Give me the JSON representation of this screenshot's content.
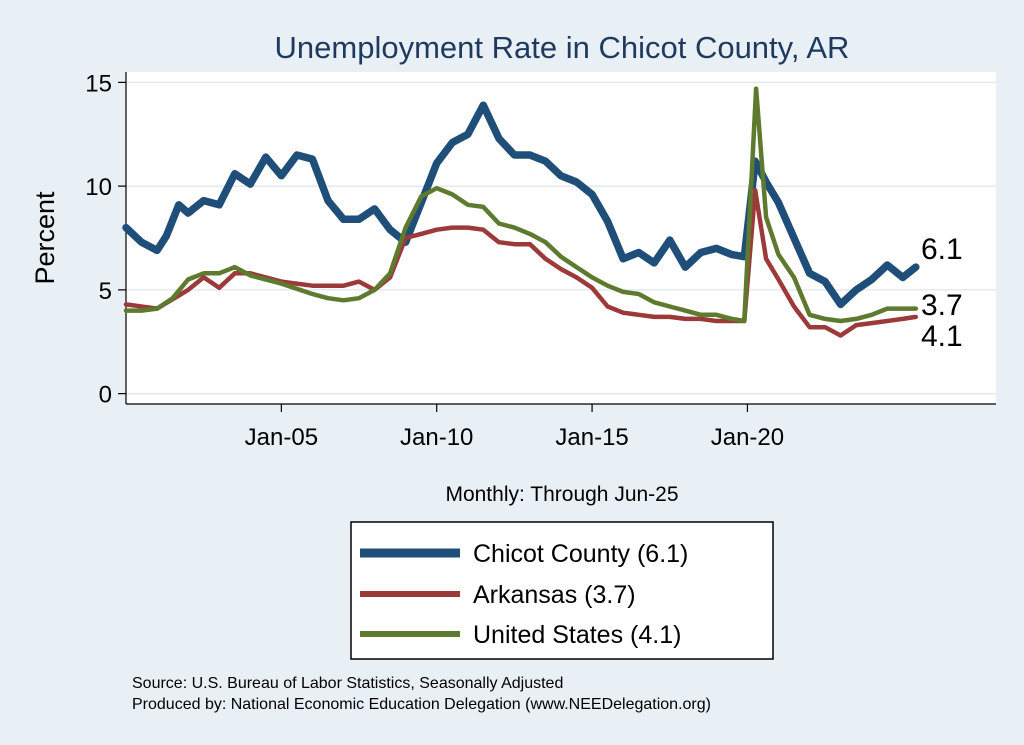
{
  "chart_data": {
    "type": "line",
    "title": "Unemployment Rate in Chicot  County, AR",
    "ylabel": "Percent",
    "xlabel": "Monthly: Through Jun-25",
    "ylim": [
      -0.5,
      15.5
    ],
    "xlim": [
      2000.0,
      2028.0
    ],
    "yticks": [
      0,
      5,
      10,
      15
    ],
    "xticks": [
      {
        "label": "Jan-05",
        "year": 2005.0
      },
      {
        "label": "Jan-10",
        "year": 2010.0
      },
      {
        "label": "Jan-15",
        "year": 2015.0
      },
      {
        "label": "Jan-20",
        "year": 2020.0
      }
    ],
    "series": [
      {
        "name": "Chicot  County",
        "legend": "Chicot  County (6.1)",
        "end_label": "6.1",
        "last_value": 6.1,
        "color": "#1f4e79",
        "points": [
          [
            2000.0,
            8.0
          ],
          [
            2000.5,
            7.3
          ],
          [
            2001.0,
            6.9
          ],
          [
            2001.3,
            7.6
          ],
          [
            2001.7,
            9.1
          ],
          [
            2002.0,
            8.7
          ],
          [
            2002.5,
            9.3
          ],
          [
            2003.0,
            9.1
          ],
          [
            2003.5,
            10.6
          ],
          [
            2004.0,
            10.1
          ],
          [
            2004.5,
            11.4
          ],
          [
            2005.0,
            10.5
          ],
          [
            2005.5,
            11.5
          ],
          [
            2006.0,
            11.3
          ],
          [
            2006.5,
            9.3
          ],
          [
            2007.0,
            8.4
          ],
          [
            2007.5,
            8.4
          ],
          [
            2008.0,
            8.9
          ],
          [
            2008.5,
            7.9
          ],
          [
            2009.0,
            7.3
          ],
          [
            2009.5,
            9.2
          ],
          [
            2010.0,
            11.1
          ],
          [
            2010.5,
            12.1
          ],
          [
            2011.0,
            12.5
          ],
          [
            2011.5,
            13.9
          ],
          [
            2012.0,
            12.3
          ],
          [
            2012.5,
            11.5
          ],
          [
            2013.0,
            11.5
          ],
          [
            2013.5,
            11.2
          ],
          [
            2014.0,
            10.5
          ],
          [
            2014.5,
            10.2
          ],
          [
            2015.0,
            9.6
          ],
          [
            2015.5,
            8.3
          ],
          [
            2016.0,
            6.5
          ],
          [
            2016.5,
            6.8
          ],
          [
            2017.0,
            6.3
          ],
          [
            2017.5,
            7.4
          ],
          [
            2018.0,
            6.1
          ],
          [
            2018.5,
            6.8
          ],
          [
            2019.0,
            7.0
          ],
          [
            2019.5,
            6.7
          ],
          [
            2019.9,
            6.6
          ],
          [
            2020.25,
            11.2
          ],
          [
            2020.6,
            10.2
          ],
          [
            2021.0,
            9.2
          ],
          [
            2021.5,
            7.5
          ],
          [
            2022.0,
            5.8
          ],
          [
            2022.5,
            5.4
          ],
          [
            2023.0,
            4.3
          ],
          [
            2023.5,
            5.0
          ],
          [
            2024.0,
            5.5
          ],
          [
            2024.5,
            6.2
          ],
          [
            2025.0,
            5.6
          ],
          [
            2025.42,
            6.1
          ]
        ]
      },
      {
        "name": "Arkansas",
        "legend": "Arkansas (3.7)",
        "end_label": "3.7",
        "last_value": 3.7,
        "color": "#9c3a3a",
        "points": [
          [
            2000.0,
            4.3
          ],
          [
            2001.0,
            4.1
          ],
          [
            2002.0,
            5.0
          ],
          [
            2002.5,
            5.6
          ],
          [
            2003.0,
            5.1
          ],
          [
            2003.5,
            5.8
          ],
          [
            2004.0,
            5.8
          ],
          [
            2005.0,
            5.4
          ],
          [
            2006.0,
            5.2
          ],
          [
            2006.5,
            5.2
          ],
          [
            2007.0,
            5.2
          ],
          [
            2007.5,
            5.4
          ],
          [
            2008.0,
            5.0
          ],
          [
            2008.5,
            5.6
          ],
          [
            2009.0,
            7.5
          ],
          [
            2009.5,
            7.7
          ],
          [
            2010.0,
            7.9
          ],
          [
            2010.5,
            8.0
          ],
          [
            2011.0,
            8.0
          ],
          [
            2011.5,
            7.9
          ],
          [
            2012.0,
            7.3
          ],
          [
            2012.5,
            7.2
          ],
          [
            2013.0,
            7.2
          ],
          [
            2013.5,
            6.5
          ],
          [
            2014.0,
            6.0
          ],
          [
            2014.5,
            5.6
          ],
          [
            2015.0,
            5.1
          ],
          [
            2015.5,
            4.2
          ],
          [
            2016.0,
            3.9
          ],
          [
            2016.5,
            3.8
          ],
          [
            2017.0,
            3.7
          ],
          [
            2017.5,
            3.7
          ],
          [
            2018.0,
            3.6
          ],
          [
            2018.5,
            3.6
          ],
          [
            2019.0,
            3.5
          ],
          [
            2019.5,
            3.5
          ],
          [
            2019.9,
            3.5
          ],
          [
            2020.25,
            9.8
          ],
          [
            2020.6,
            6.5
          ],
          [
            2021.0,
            5.5
          ],
          [
            2021.5,
            4.2
          ],
          [
            2022.0,
            3.2
          ],
          [
            2022.5,
            3.2
          ],
          [
            2023.0,
            2.8
          ],
          [
            2023.5,
            3.3
          ],
          [
            2024.0,
            3.4
          ],
          [
            2024.5,
            3.5
          ],
          [
            2025.0,
            3.6
          ],
          [
            2025.42,
            3.7
          ]
        ]
      },
      {
        "name": "United States",
        "legend": "United States (4.1)",
        "end_label": "4.1",
        "last_value": 4.1,
        "color": "#5d7a2e",
        "points": [
          [
            2000.0,
            4.0
          ],
          [
            2000.5,
            4.0
          ],
          [
            2001.0,
            4.1
          ],
          [
            2001.5,
            4.6
          ],
          [
            2002.0,
            5.5
          ],
          [
            2002.5,
            5.8
          ],
          [
            2003.0,
            5.8
          ],
          [
            2003.5,
            6.1
          ],
          [
            2004.0,
            5.7
          ],
          [
            2005.0,
            5.3
          ],
          [
            2006.0,
            4.8
          ],
          [
            2006.5,
            4.6
          ],
          [
            2007.0,
            4.5
          ],
          [
            2007.5,
            4.6
          ],
          [
            2008.0,
            5.0
          ],
          [
            2008.5,
            5.8
          ],
          [
            2009.0,
            8.0
          ],
          [
            2009.5,
            9.5
          ],
          [
            2010.0,
            9.9
          ],
          [
            2010.5,
            9.6
          ],
          [
            2011.0,
            9.1
          ],
          [
            2011.5,
            9.0
          ],
          [
            2012.0,
            8.2
          ],
          [
            2012.5,
            8.0
          ],
          [
            2013.0,
            7.7
          ],
          [
            2013.5,
            7.3
          ],
          [
            2014.0,
            6.6
          ],
          [
            2014.5,
            6.1
          ],
          [
            2015.0,
            5.6
          ],
          [
            2015.5,
            5.2
          ],
          [
            2016.0,
            4.9
          ],
          [
            2016.5,
            4.8
          ],
          [
            2017.0,
            4.4
          ],
          [
            2017.5,
            4.2
          ],
          [
            2018.0,
            4.0
          ],
          [
            2018.5,
            3.8
          ],
          [
            2019.0,
            3.8
          ],
          [
            2019.5,
            3.6
          ],
          [
            2019.9,
            3.5
          ],
          [
            2020.28,
            14.7
          ],
          [
            2020.6,
            8.5
          ],
          [
            2021.0,
            6.7
          ],
          [
            2021.5,
            5.6
          ],
          [
            2022.0,
            3.8
          ],
          [
            2022.5,
            3.6
          ],
          [
            2023.0,
            3.5
          ],
          [
            2023.5,
            3.6
          ],
          [
            2024.0,
            3.8
          ],
          [
            2024.5,
            4.1
          ],
          [
            2025.0,
            4.1
          ],
          [
            2025.42,
            4.1
          ]
        ]
      }
    ],
    "source_note": "Source: U.S. Bureau of Labor Statistics, Seasonally Adjusted",
    "producer_note": "Produced by: National Economic Education Delegation (www.NEEDelegation.org)",
    "legend_position": "bottom-center"
  }
}
